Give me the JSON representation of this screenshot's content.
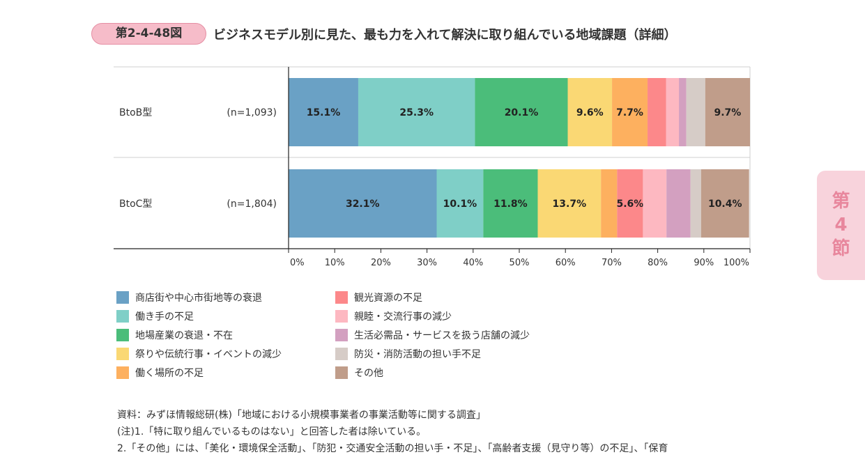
{
  "figure": {
    "number": "第2-4-48図",
    "title": "ビジネスモデル別に見た、最も力を入れて解決に取り組んでいる地域課題（詳細）"
  },
  "chapter_tab": {
    "chars": [
      "第",
      "4",
      "節"
    ]
  },
  "colors": {
    "badge_bg": "#f6bcc9",
    "tab_bg": "#f8d3dc",
    "tab_text": "#e8879d"
  },
  "chart_data": {
    "type": "bar",
    "orientation": "horizontal",
    "stacked": true,
    "percent": true,
    "categories": [
      {
        "label": "BtoB型",
        "n": "(n=1,093)"
      },
      {
        "label": "BtoC型",
        "n": "(n=1,804)"
      }
    ],
    "series": [
      {
        "name": "商店街や中心市街地等の衰退",
        "color": "#6aa1c5",
        "values": [
          15.1,
          32.1
        ],
        "labels": [
          "15.1%",
          "32.1%"
        ]
      },
      {
        "name": "働き手の不足",
        "color": "#7fcfc7",
        "values": [
          25.3,
          10.1
        ],
        "labels": [
          "25.3%",
          "10.1%"
        ]
      },
      {
        "name": "地場産業の衰退・不在",
        "color": "#4bbd7a",
        "values": [
          20.1,
          11.8
        ],
        "labels": [
          "20.1%",
          "11.8%"
        ]
      },
      {
        "name": "祭りや伝統行事・イベントの減少",
        "color": "#fad874",
        "values": [
          9.6,
          13.7
        ],
        "labels": [
          "9.6%",
          "13.7%"
        ]
      },
      {
        "name": "働く場所の不足",
        "color": "#fdb05f",
        "values": [
          7.7,
          3.5
        ],
        "labels": [
          "7.7%",
          ""
        ]
      },
      {
        "name": "観光資源の不足",
        "color": "#fc888a",
        "values": [
          4.0,
          5.6
        ],
        "labels": [
          "",
          "5.6%"
        ]
      },
      {
        "name": "親睦・交流行事の減少",
        "color": "#fdb8c1",
        "values": [
          2.8,
          5.1
        ],
        "labels": [
          "",
          ""
        ]
      },
      {
        "name": "生活必需品・サービスを扱う店舗の減少",
        "color": "#d3a0c0",
        "values": [
          1.6,
          5.2
        ],
        "labels": [
          "",
          ""
        ]
      },
      {
        "name": "防災・消防活動の担い手不足",
        "color": "#d6ccc7",
        "values": [
          4.1,
          2.3
        ],
        "labels": [
          "",
          ""
        ]
      },
      {
        "name": "その他",
        "color": "#c09d8a",
        "values": [
          9.7,
          10.4
        ],
        "labels": [
          "9.7%",
          "10.4%"
        ]
      }
    ],
    "xlim": [
      0,
      100
    ],
    "x_ticks": [
      "0%",
      "10%",
      "20%",
      "30%",
      "40%",
      "50%",
      "60%",
      "70%",
      "80%",
      "90%",
      "100%"
    ]
  },
  "notes": [
    "資料：みずほ情報総研(株)「地域における小規模事業者の事業活動等に関する調査」",
    "(注)1.「特に取り組んでいるものはない」と回答した者は除いている。",
    "2.「その他」には、「美化・環境保全活動」、「防犯・交通安全活動の担い手・不足」、「高齢者支援（見守り等）の不足」、「保育"
  ]
}
